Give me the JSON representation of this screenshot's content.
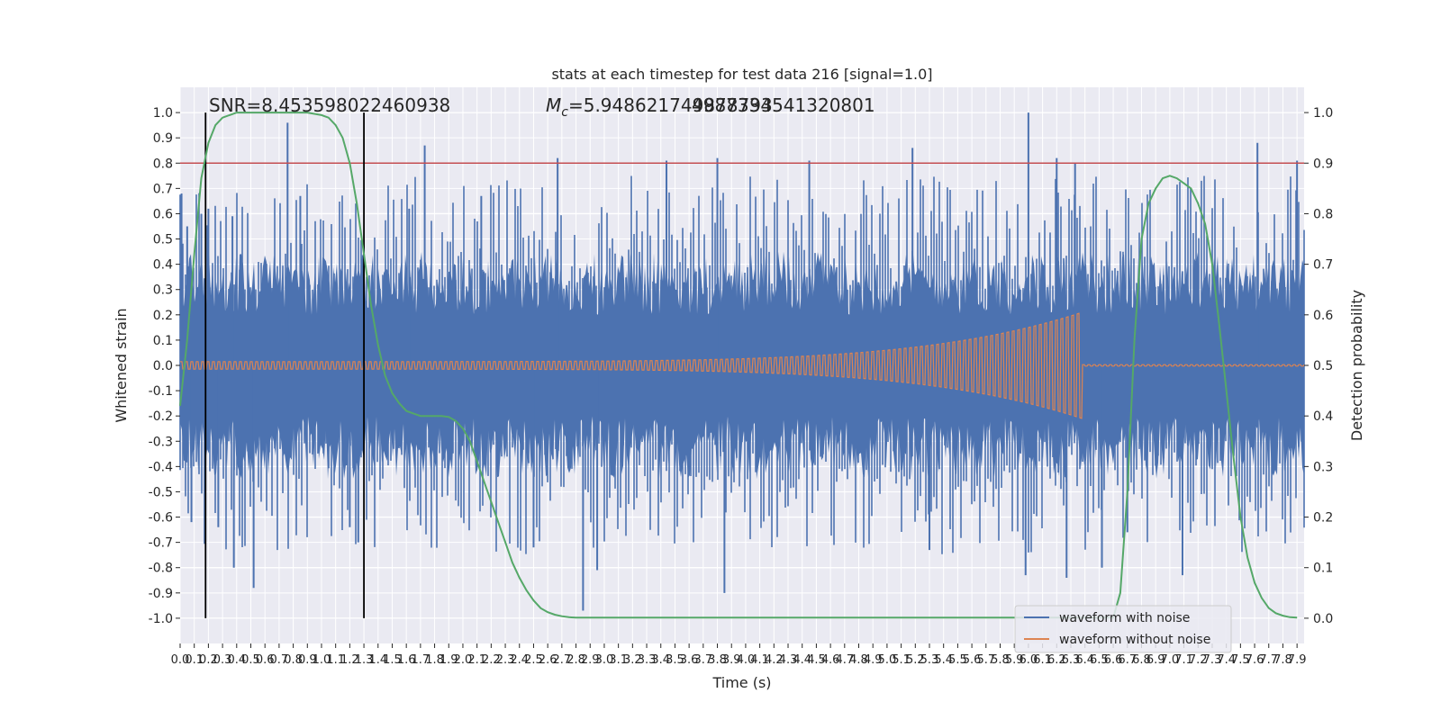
{
  "chart_data": {
    "type": "line",
    "title": "stats at each timestep for test data 216 [signal=1.0]",
    "xlabel": "Time (s)",
    "ylabel": "Whitened strain",
    "y2label": "Detection probability",
    "xlim": [
      0.0,
      7.95
    ],
    "ylim": [
      -1.1,
      1.1
    ],
    "y2lim": [
      -0.05,
      1.05
    ],
    "xticks": [
      0.0,
      0.1,
      0.2,
      0.3,
      0.4,
      0.5,
      0.6,
      0.7,
      0.8,
      0.9,
      1.0,
      1.1,
      1.2,
      1.3,
      1.4,
      1.5,
      1.6,
      1.7,
      1.8,
      1.9,
      2.0,
      2.1,
      2.2,
      2.3,
      2.4,
      2.5,
      2.6,
      2.7,
      2.8,
      2.9,
      3.0,
      3.1,
      3.2,
      3.3,
      3.4,
      3.5,
      3.6,
      3.7,
      3.8,
      3.9,
      4.0,
      4.1,
      4.2,
      4.3,
      4.4,
      4.5,
      4.6,
      4.7,
      4.8,
      4.9,
      5.0,
      5.1,
      5.2,
      5.3,
      5.4,
      5.5,
      5.6,
      5.7,
      5.8,
      5.9,
      6.0,
      6.1,
      6.2,
      6.3,
      6.4,
      6.5,
      6.6,
      6.7,
      6.8,
      6.9,
      7.0,
      7.1,
      7.2,
      7.3,
      7.4,
      7.5,
      7.6,
      7.7,
      7.8,
      7.9
    ],
    "yticks": [
      -1.0,
      -0.9,
      -0.8,
      -0.7,
      -0.6,
      -0.5,
      -0.4,
      -0.3,
      -0.2,
      -0.1,
      0.0,
      0.1,
      0.2,
      0.3,
      0.4,
      0.5,
      0.6,
      0.7,
      0.8,
      0.9,
      1.0
    ],
    "y2ticks": [
      0.0,
      0.1,
      0.2,
      0.3,
      0.4,
      0.5,
      0.6,
      0.7,
      0.8,
      0.9,
      1.0
    ],
    "grid": true,
    "legend_position": "lower-right",
    "annotations": {
      "snr": "SNR=8.453598022460938",
      "mc_prefix": "M",
      "mc_sub": "c",
      "mc_value": "=5.948621749878793",
      "overlap_text": "4987334541320801"
    },
    "threshold_line": {
      "y2": 0.9,
      "color": "#c44e52"
    },
    "vertical_markers_x": [
      0.18,
      1.3
    ],
    "noise_series": {
      "name": "waveform with noise",
      "color": "#4c72b0",
      "envelope_peaks": [
        {
          "x": 0.01,
          "y": 0.68
        },
        {
          "x": 0.05,
          "y": 0.55
        },
        {
          "x": 0.08,
          "y": -0.62
        },
        {
          "x": 0.15,
          "y": 0.6
        },
        {
          "x": 0.2,
          "y": 0.62
        },
        {
          "x": 0.27,
          "y": -0.64
        },
        {
          "x": 0.37,
          "y": 0.59
        },
        {
          "x": 0.38,
          "y": -0.8
        },
        {
          "x": 0.52,
          "y": -0.88
        },
        {
          "x": 0.76,
          "y": 0.96
        },
        {
          "x": 0.85,
          "y": 0.67
        },
        {
          "x": 1.2,
          "y": -0.64
        },
        {
          "x": 1.26,
          "y": -0.7
        },
        {
          "x": 1.62,
          "y": 0.62
        },
        {
          "x": 1.73,
          "y": 0.87
        },
        {
          "x": 2.13,
          "y": 0.67
        },
        {
          "x": 2.5,
          "y": -0.72
        },
        {
          "x": 2.67,
          "y": 0.82
        },
        {
          "x": 2.85,
          "y": -0.97
        },
        {
          "x": 2.95,
          "y": -0.81
        },
        {
          "x": 3.44,
          "y": 0.81
        },
        {
          "x": 3.8,
          "y": 0.82
        },
        {
          "x": 3.85,
          "y": -0.9
        },
        {
          "x": 4.45,
          "y": 0.81
        },
        {
          "x": 5.18,
          "y": 0.86
        },
        {
          "x": 5.3,
          "y": -0.73
        },
        {
          "x": 5.98,
          "y": -0.83
        },
        {
          "x": 6.0,
          "y": 1.0
        },
        {
          "x": 6.2,
          "y": 0.82
        },
        {
          "x": 6.33,
          "y": 0.8
        },
        {
          "x": 6.27,
          "y": -0.84
        },
        {
          "x": 6.52,
          "y": -0.8
        },
        {
          "x": 6.7,
          "y": -0.66
        },
        {
          "x": 7.09,
          "y": -0.83
        },
        {
          "x": 7.62,
          "y": 0.88
        },
        {
          "x": 7.9,
          "y": 0.81
        }
      ]
    },
    "clean_series": {
      "name": "waveform without noise",
      "color": "#dd8452",
      "chirp_start_amplitude": 0.015,
      "chirp_peak_amplitude": 0.21,
      "merger_time": 6.38
    },
    "probability_series": {
      "name": "Detection probability",
      "color": "#55a868",
      "axis": "right",
      "x": [
        0.0,
        0.05,
        0.1,
        0.15,
        0.2,
        0.25,
        0.3,
        0.35,
        0.4,
        0.5,
        0.6,
        0.7,
        0.8,
        0.9,
        1.0,
        1.05,
        1.1,
        1.15,
        1.2,
        1.25,
        1.3,
        1.35,
        1.4,
        1.45,
        1.5,
        1.55,
        1.6,
        1.65,
        1.7,
        1.75,
        1.8,
        1.85,
        1.9,
        1.95,
        2.0,
        2.05,
        2.1,
        2.15,
        2.2,
        2.25,
        2.3,
        2.35,
        2.4,
        2.45,
        2.5,
        2.55,
        2.6,
        2.65,
        2.7,
        2.75,
        2.8,
        2.85,
        2.9,
        3.0,
        3.5,
        4.0,
        4.5,
        5.0,
        5.5,
        6.0,
        6.2,
        6.4,
        6.6,
        6.65,
        6.7,
        6.75,
        6.8,
        6.85,
        6.9,
        6.95,
        7.0,
        7.05,
        7.1,
        7.15,
        7.2,
        7.25,
        7.3,
        7.35,
        7.4,
        7.45,
        7.5,
        7.55,
        7.6,
        7.65,
        7.7,
        7.75,
        7.8,
        7.85,
        7.9
      ],
      "y": [
        0.42,
        0.55,
        0.72,
        0.87,
        0.94,
        0.975,
        0.99,
        0.995,
        1.0,
        1.0,
        1.0,
        1.0,
        1.0,
        1.0,
        0.995,
        0.99,
        0.975,
        0.95,
        0.9,
        0.82,
        0.72,
        0.62,
        0.54,
        0.48,
        0.445,
        0.425,
        0.41,
        0.405,
        0.4,
        0.4,
        0.4,
        0.4,
        0.398,
        0.39,
        0.375,
        0.35,
        0.31,
        0.27,
        0.23,
        0.19,
        0.15,
        0.11,
        0.08,
        0.055,
        0.035,
        0.02,
        0.012,
        0.007,
        0.004,
        0.002,
        0.001,
        0.001,
        0.001,
        0.001,
        0.001,
        0.001,
        0.001,
        0.001,
        0.001,
        0.001,
        0.001,
        0.001,
        0.001,
        0.05,
        0.25,
        0.55,
        0.75,
        0.82,
        0.85,
        0.87,
        0.875,
        0.87,
        0.86,
        0.85,
        0.82,
        0.78,
        0.7,
        0.58,
        0.45,
        0.32,
        0.2,
        0.12,
        0.07,
        0.04,
        0.02,
        0.01,
        0.005,
        0.002,
        0.001
      ]
    },
    "legend": [
      {
        "label": "waveform with noise",
        "color": "#4c72b0"
      },
      {
        "label": "waveform without noise",
        "color": "#dd8452"
      }
    ]
  },
  "colors": {
    "plot_background": "#eaeaf2",
    "grid": "#ffffff",
    "noise": "#4c72b0",
    "clean": "#dd8452",
    "probability": "#55a868",
    "threshold": "#c44e52",
    "markers": "#000000"
  }
}
